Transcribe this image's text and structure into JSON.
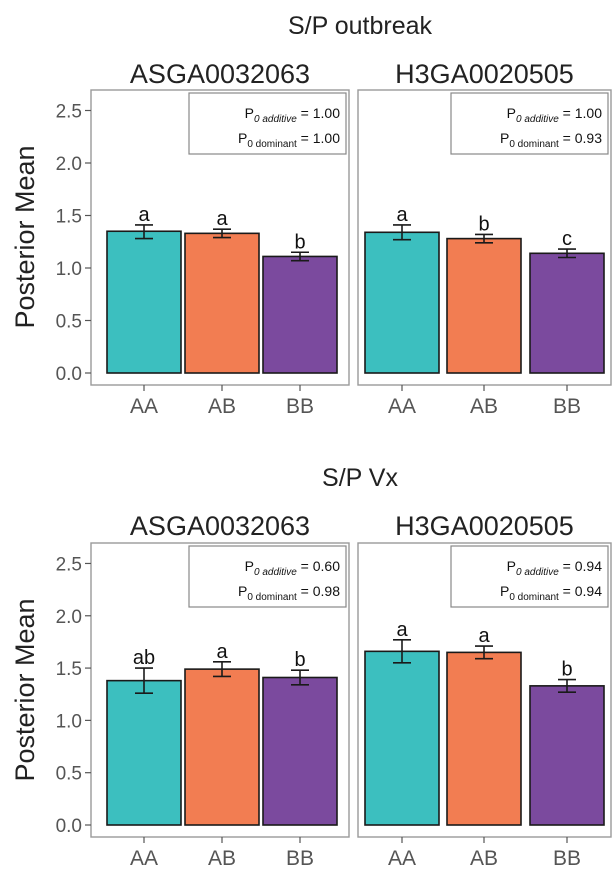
{
  "colors": {
    "AA": "#3cbfbf",
    "AB": "#f27d52",
    "BB": "#7b4a9e"
  },
  "chart_data": [
    {
      "type": "bar",
      "section_title": "S/P outbreak",
      "title": "ASGA0032063",
      "ylabel": "Posterior Mean",
      "ylim": [
        0,
        2.6
      ],
      "yticks": [
        "0.0",
        "0.5",
        "1.0",
        "1.5",
        "2.0",
        "2.5"
      ],
      "categories": [
        "AA",
        "AB",
        "BB"
      ],
      "values": [
        1.35,
        1.33,
        1.11
      ],
      "error_low": [
        1.28,
        1.29,
        1.07
      ],
      "error_high": [
        1.41,
        1.37,
        1.15
      ],
      "letters": [
        "a",
        "a",
        "b"
      ],
      "annotation": {
        "p_label": "P",
        "p_sub": "0",
        "additive_label": "additive",
        "additive_value": "= 1.00",
        "dominant_label": "dominant",
        "dominant_value": "= 1.00"
      }
    },
    {
      "type": "bar",
      "section_title": "S/P outbreak",
      "title": "H3GA0020505",
      "ylabel": "",
      "ylim": [
        0,
        2.6
      ],
      "yticks": [],
      "categories": [
        "AA",
        "AB",
        "BB"
      ],
      "values": [
        1.34,
        1.28,
        1.14
      ],
      "error_low": [
        1.27,
        1.24,
        1.1
      ],
      "error_high": [
        1.41,
        1.32,
        1.18
      ],
      "letters": [
        "a",
        "b",
        "c"
      ],
      "annotation": {
        "p_label": "P",
        "p_sub": "0",
        "additive_label": "additive",
        "additive_value": "= 1.00",
        "dominant_label": "dominant",
        "dominant_value": "= 0.93"
      }
    },
    {
      "type": "bar",
      "section_title": "S/P Vx",
      "title": "ASGA0032063",
      "ylabel": "Posterior Mean",
      "ylim": [
        0,
        2.6
      ],
      "yticks": [
        "0.0",
        "0.5",
        "1.0",
        "1.5",
        "2.0",
        "2.5"
      ],
      "categories": [
        "AA",
        "AB",
        "BB"
      ],
      "values": [
        1.38,
        1.49,
        1.41
      ],
      "error_low": [
        1.26,
        1.42,
        1.34
      ],
      "error_high": [
        1.5,
        1.56,
        1.48
      ],
      "letters": [
        "ab",
        "a",
        "b"
      ],
      "annotation": {
        "p_label": "P",
        "p_sub": "0",
        "additive_label": "additive",
        "additive_value": "= 0.60",
        "dominant_label": "dominant",
        "dominant_value": "= 0.98"
      }
    },
    {
      "type": "bar",
      "section_title": "S/P Vx",
      "title": "H3GA0020505",
      "ylabel": "",
      "ylim": [
        0,
        2.6
      ],
      "yticks": [],
      "categories": [
        "AA",
        "AB",
        "BB"
      ],
      "values": [
        1.66,
        1.65,
        1.33
      ],
      "error_low": [
        1.55,
        1.59,
        1.27
      ],
      "error_high": [
        1.77,
        1.71,
        1.39
      ],
      "letters": [
        "a",
        "a",
        "b"
      ],
      "annotation": {
        "p_label": "P",
        "p_sub": "0",
        "additive_label": "additive",
        "additive_value": "= 0.94",
        "dominant_label": "dominant",
        "dominant_value": "= 0.94"
      }
    }
  ]
}
